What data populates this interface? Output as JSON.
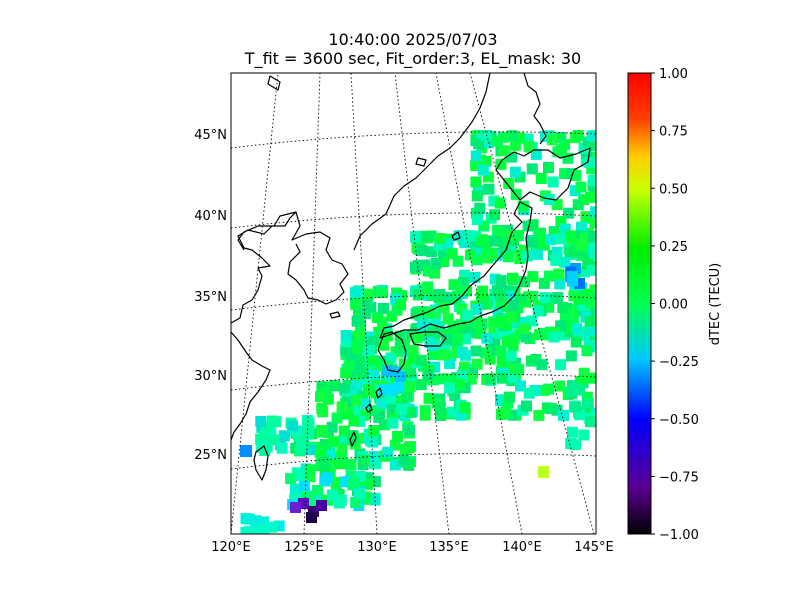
{
  "title": {
    "line1": "10:40:00 2025/07/03",
    "line2": "T_fit = 3600 sec, Fit_order:3, EL_mask: 30"
  },
  "map": {
    "lon_range": [
      120,
      145
    ],
    "lat_range": [
      20,
      49
    ],
    "lon_ticks": [
      "120°E",
      "125°E",
      "130°E",
      "135°E",
      "140°E",
      "145°E"
    ],
    "lat_ticks": [
      "25°N",
      "30°N",
      "35°N",
      "40°N",
      "45°N"
    ],
    "graticule": "dotted"
  },
  "colorbar": {
    "label": "dTEC (TECU)",
    "ticks": [
      "1.00",
      "0.75",
      "0.50",
      "0.25",
      "0.00",
      "−0.25",
      "−0.50",
      "−0.75",
      "−1.00"
    ],
    "range": [
      -1.0,
      1.0
    ],
    "colormap": "nipy_spectral-like",
    "colors": [
      "#000000",
      "#5a0090",
      "#0000ff",
      "#00c8ff",
      "#00ff50",
      "#ccff00",
      "#ffcc00",
      "#ff4000",
      "#ff0000"
    ]
  },
  "colors": {
    "coastline": "#000000",
    "background": "#ffffff"
  }
}
